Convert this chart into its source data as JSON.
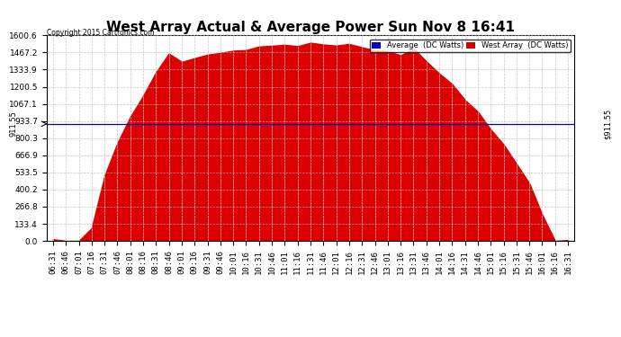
{
  "title": "West Array Actual & Average Power Sun Nov 8 16:41",
  "copyright": "Copyright 2015 Cartronics.com",
  "legend_avg_label": "Average  (DC Watts)",
  "legend_west_label": "West Array  (DC Watts)",
  "legend_avg_color": "#0000cc",
  "legend_west_color": "#cc0000",
  "avg_line_value": 911.55,
  "avg_line_label": "911.55",
  "avg_line_color": "#0000bb",
  "fill_color": "#dd0000",
  "background_color": "#ffffff",
  "grid_color": "#bbbbbb",
  "ymin": 0.0,
  "ymax": 1600.6,
  "yticks": [
    0.0,
    133.4,
    266.8,
    400.2,
    533.5,
    666.9,
    800.3,
    933.7,
    1067.1,
    1200.5,
    1333.9,
    1467.2,
    1600.6
  ],
  "title_fontsize": 11,
  "tick_fontsize": 6.5
}
